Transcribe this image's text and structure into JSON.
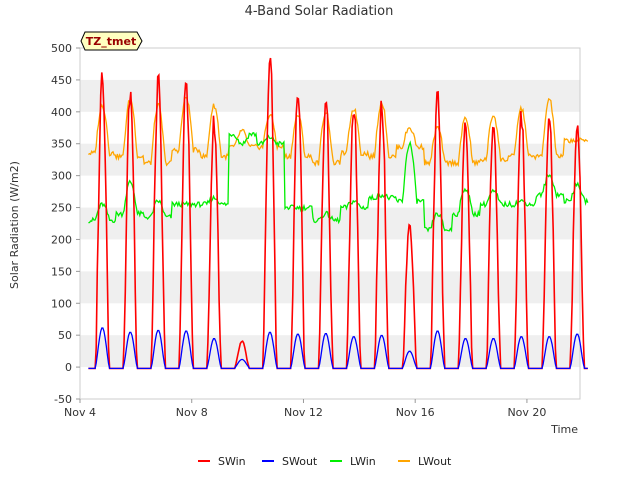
{
  "chart_data": {
    "type": "line",
    "title": "4-Band Solar Radiation",
    "xlabel": "Time",
    "ylabel": "Solar Radiation (W/m2)",
    "xlim": [
      4.0,
      21.9
    ],
    "ylim": [
      -50,
      500
    ],
    "yticks": [
      -50,
      0,
      50,
      100,
      150,
      200,
      250,
      300,
      350,
      400,
      450,
      500
    ],
    "xticks": [
      {
        "day": 4,
        "label": "Nov 4"
      },
      {
        "day": 8,
        "label": "Nov 8"
      },
      {
        "day": 12,
        "label": "Nov 12"
      },
      {
        "day": 16,
        "label": "Nov 16"
      },
      {
        "day": 20,
        "label": "Nov 20"
      }
    ],
    "grid_bands": true,
    "legend_position": "bottom",
    "annotation": "TZ_tmet",
    "series": [
      {
        "name": "SWin",
        "color": "#ff0000",
        "peaks": [
          462,
          430,
          446,
          450,
          385,
          40,
          487,
          430,
          425,
          412,
          415,
          225,
          427,
          380,
          385,
          395,
          390,
          380
        ]
      },
      {
        "name": "SWout",
        "color": "#0000ff",
        "peaks": [
          62,
          55,
          58,
          57,
          45,
          12,
          55,
          52,
          53,
          48,
          50,
          25,
          57,
          45,
          45,
          48,
          48,
          52
        ]
      },
      {
        "name": "LWin",
        "color": "#00ee00",
        "day_start": [
          230,
          240,
          235,
          255,
          255,
          365,
          350,
          250,
          230,
          250,
          265,
          260,
          215,
          240,
          255,
          255,
          270,
          260
        ],
        "day_peak": [
          255,
          290,
          260,
          255,
          265,
          350,
          360,
          250,
          240,
          260,
          270,
          350,
          240,
          280,
          275,
          260,
          300,
          285
        ]
      },
      {
        "name": "LWout",
        "color": "#ffa500",
        "day_start": [
          335,
          330,
          320,
          340,
          330,
          345,
          345,
          330,
          320,
          335,
          330,
          345,
          320,
          320,
          325,
          330,
          330,
          355
        ],
        "day_peak": [
          410,
          420,
          410,
          423,
          410,
          370,
          395,
          395,
          400,
          405,
          415,
          375,
          375,
          390,
          395,
          405,
          420,
          355
        ]
      }
    ]
  }
}
